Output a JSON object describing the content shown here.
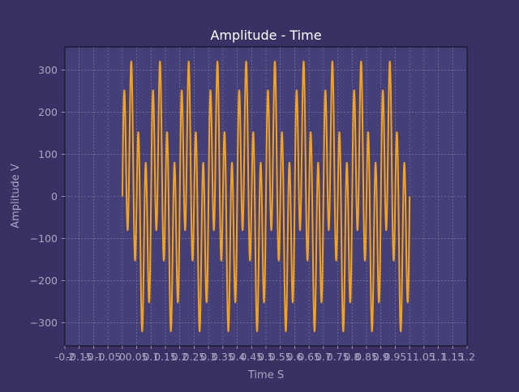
{
  "chart_data": {
    "type": "line",
    "title": "Amplitude - Time",
    "xlabel": "Time S",
    "ylabel": "Amplitude V",
    "xlim": [
      -0.2,
      1.2
    ],
    "ylim": [
      -355,
      355
    ],
    "x_ticks": [
      -0.2,
      -0.15,
      -0.1,
      -0.05,
      0,
      0.05,
      0.1,
      0.15,
      0.2,
      0.25,
      0.3,
      0.35,
      0.4,
      0.45,
      0.5,
      0.55,
      0.6,
      0.65,
      0.7,
      0.75,
      0.8,
      0.85,
      0.9,
      0.95,
      1,
      1.05,
      1.1,
      1.15,
      1.2
    ],
    "x_tick_labels": [
      "-0.2",
      "-0.15",
      "-0.1",
      "-0.05",
      "0",
      "0.05",
      "0.1",
      "0.15",
      "0.2",
      "0.25",
      "0.3",
      "0.35",
      "0.4",
      "0.45",
      "0.5",
      "0.55",
      "0.6",
      "0.65",
      "0.7",
      "0.75",
      "0.8",
      "0.85",
      "0.9",
      "0.95",
      "1",
      "1.05",
      "1.1",
      "1.15",
      "1.2"
    ],
    "y_ticks": [
      -300,
      -200,
      -100,
      0,
      100,
      200,
      300
    ],
    "y_tick_labels": [
      "−300",
      "−200",
      "−100",
      "0",
      "100",
      "200",
      "300"
    ],
    "grid": true,
    "series": [
      {
        "signal": {
          "components": [
            {
              "amplitude": 200,
              "frequency_hz": 40
            },
            {
              "amplitude": 130,
              "frequency_hz": 10
            }
          ],
          "x_start": 0,
          "x_end": 1,
          "samples": 2000
        }
      }
    ],
    "colors": {
      "background": "#3a3064",
      "plot_area": "#453f78",
      "line": "#f5a31a",
      "grid": "#9c98b4",
      "axis_text": "#a9a5c2",
      "title_text": "#ffffff"
    }
  }
}
